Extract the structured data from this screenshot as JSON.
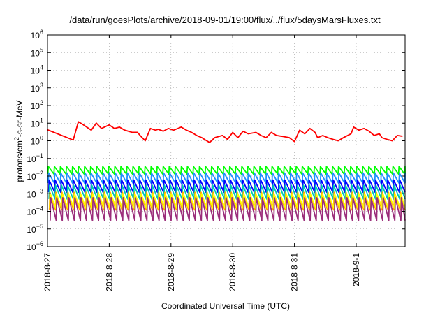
{
  "chart_data": {
    "type": "line",
    "title": "/data/run/goesPlots/archive/2018-09-01/19:00/flux/../flux/5daysMarsFluxes.txt",
    "xlabel": "Coordinated Universal Time (UTC)",
    "ylabel": "protons/cm²-s-sr-MeV",
    "y_scale": "log",
    "ylim": [
      1e-06,
      1000000.0
    ],
    "y_ticks": [
      {
        "exp": "-6"
      },
      {
        "exp": "-5"
      },
      {
        "exp": "-4"
      },
      {
        "exp": "-3"
      },
      {
        "exp": "-2"
      },
      {
        "exp": "-1"
      },
      {
        "exp": "0"
      },
      {
        "exp": "1"
      },
      {
        "exp": "2"
      },
      {
        "exp": "3"
      },
      {
        "exp": "4"
      },
      {
        "exp": "5"
      },
      {
        "exp": "6"
      }
    ],
    "x_range": [
      "2018-08-27 00:00",
      "2018-09-01 19:00"
    ],
    "x_ticks": [
      "2018-8-27",
      "2018-8-28",
      "2018-8-29",
      "2018-8-30",
      "2018-8-31",
      "2018-9-1"
    ],
    "grid": "dotted",
    "legend": "none",
    "series": [
      {
        "color": "#ff0000",
        "x_hours": [
          0,
          10,
          12,
          14,
          17,
          19,
          21,
          24,
          26,
          28,
          30,
          33,
          35,
          36,
          38,
          40,
          42,
          43,
          45,
          47,
          49,
          52,
          54,
          56,
          58,
          60,
          61,
          63,
          65,
          68,
          70,
          72,
          74,
          76,
          78,
          81,
          83,
          85,
          87,
          89,
          91,
          94,
          96,
          98,
          100,
          102,
          104,
          105,
          107,
          109,
          111,
          113,
          115,
          118,
          119,
          121,
          123,
          125,
          127,
          129,
          130,
          132,
          134,
          136,
          138
        ],
        "values": [
          4.2,
          1.1,
          12.0,
          8.0,
          4.0,
          10.0,
          5.0,
          8.0,
          5.0,
          6.0,
          4.0,
          3.0,
          3.0,
          2.0,
          1.0,
          5.0,
          4.0,
          4.5,
          3.5,
          5.0,
          4.0,
          6.0,
          4.0,
          3.0,
          2.0,
          1.5,
          1.2,
          0.8,
          1.5,
          2.0,
          1.2,
          3.0,
          1.5,
          3.5,
          2.5,
          3.0,
          2.0,
          1.5,
          3.0,
          2.0,
          1.8,
          1.5,
          0.9,
          4.0,
          2.5,
          5.0,
          3.0,
          1.5,
          2.0,
          1.5,
          1.2,
          1.0,
          1.5,
          2.5,
          6.0,
          4.0,
          5.0,
          3.5,
          2.0,
          2.5,
          1.5,
          1.2,
          1.0,
          2.0,
          1.8
        ]
      },
      {
        "color": "#00ff00",
        "pulse_hours": 2.35,
        "peak": 0.035,
        "trough": 0.013
      },
      {
        "color": "#1e90ff",
        "pulse_hours": 2.35,
        "peak": 0.015,
        "trough": 0.004
      },
      {
        "color": "#0000ff",
        "pulse_hours": 2.35,
        "peak": 0.006,
        "trough": 0.0012
      },
      {
        "color": "#00c8b4",
        "pulse_hours": 2.35,
        "peak": 0.003,
        "trough": 0.0005
      },
      {
        "color": "#ffa500",
        "pulse_hours": 2.35,
        "peak": 0.0012,
        "trough": 0.00012
      },
      {
        "color": "#ffff00",
        "pulse_hours": 2.35,
        "peak": 0.001,
        "trough": 0.00015
      },
      {
        "color": "#9b2d7a",
        "pulse_hours": 2.35,
        "peak": 0.0006,
        "trough": 3e-05
      }
    ]
  }
}
